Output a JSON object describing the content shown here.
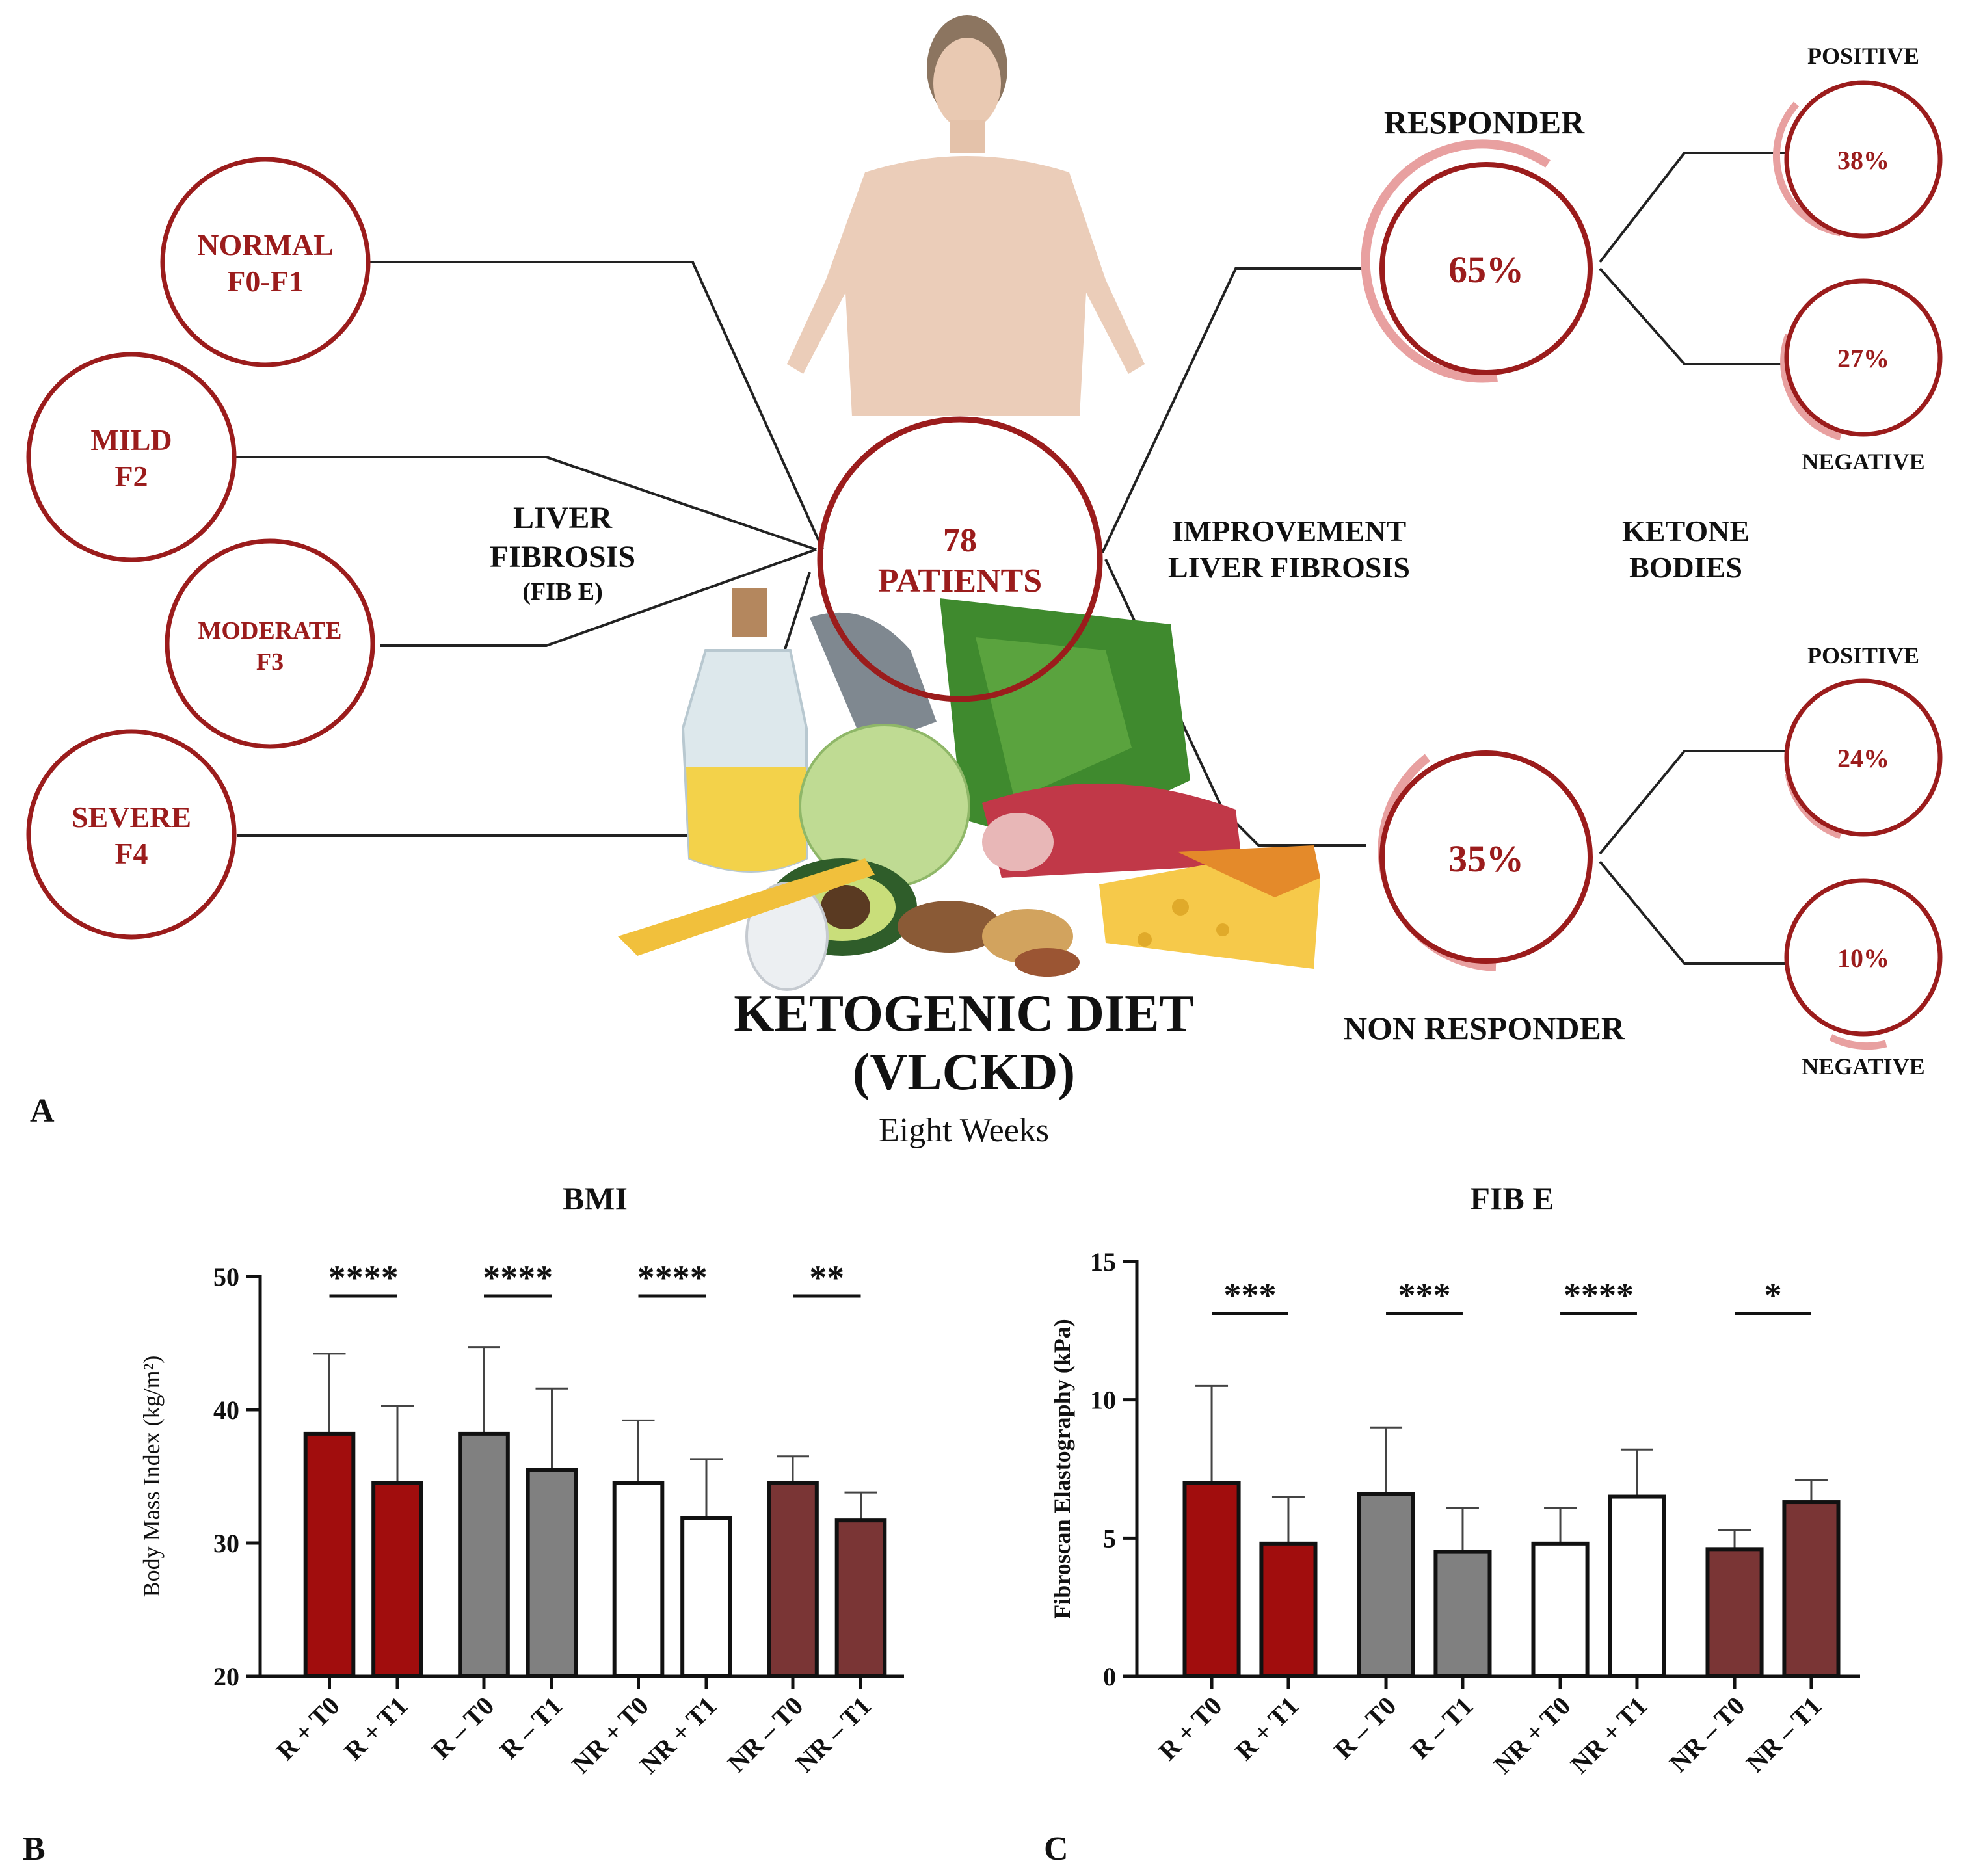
{
  "panel_a": {
    "label": "A",
    "fibrosis_stages": [
      {
        "name": "NORMAL",
        "grade": "F0-F1"
      },
      {
        "name": "MILD",
        "grade": "F2"
      },
      {
        "name": "MODERATE",
        "grade": "F3"
      },
      {
        "name": "SEVERE",
        "grade": "F4"
      }
    ],
    "liver_fibrosis": {
      "line1": "LIVER",
      "line2": "FIBROSIS",
      "line3": "(FIB E)"
    },
    "patients": {
      "count": "78",
      "label": "PATIENTS"
    },
    "diet": {
      "title": "KETOGENIC DIET",
      "abbr": "(VLCKD)",
      "duration": "Eight Weeks"
    },
    "improvement": {
      "line1": "IMPROVEMENT",
      "line2": "LIVER FIBROSIS"
    },
    "ketone": {
      "line1": "KETONE",
      "line2": "BODIES"
    },
    "responder": {
      "label": "RESPONDER",
      "percent": "65%",
      "positive": "38%",
      "negative": "27%",
      "pos_label": "POSITIVE",
      "neg_label": "NEGATIVE"
    },
    "non_responder": {
      "label": "NON RESPONDER",
      "percent": "35%",
      "positive": "24%",
      "negative": "10%",
      "pos_label": "POSITIVE",
      "neg_label": "NEGATIVE"
    },
    "colors": {
      "accent": "#9b1c1c",
      "light": "#e8a0a0",
      "line": "#222222"
    }
  },
  "chart_data": [
    {
      "panel": "B",
      "type": "bar",
      "title": "BMI",
      "ylabel": "Body Mass Index (kg/m²)",
      "ylim": [
        20,
        50
      ],
      "yticks": [
        "20",
        "30",
        "40",
        "50"
      ],
      "categories": [
        "R + T0",
        "R + T1",
        "R – T0",
        "R – T1",
        "NR + T0",
        "NR + T1",
        "NR – T0",
        "NR – T1"
      ],
      "values": [
        38.2,
        34.5,
        38.2,
        35.5,
        34.5,
        31.9,
        34.5,
        31.7
      ],
      "errors": [
        6.0,
        5.8,
        6.5,
        6.1,
        4.7,
        4.4,
        2.0,
        2.1
      ],
      "colors": [
        "#a10d0d",
        "#a10d0d",
        "#808080",
        "#808080",
        "#ffffff",
        "#ffffff",
        "#7a3535",
        "#7a3535"
      ],
      "significance": [
        "****",
        "****",
        "****",
        "**"
      ]
    },
    {
      "panel": "C",
      "type": "bar",
      "title": "FIB E",
      "ylabel": "Fibroscan Elastography (kPa)",
      "ylim": [
        0,
        15
      ],
      "yticks": [
        "0",
        "5",
        "10",
        "15"
      ],
      "categories": [
        "R + T0",
        "R + T1",
        "R – T0",
        "R – T1",
        "NR + T0",
        "NR + T1",
        "NR – T0",
        "NR – T1"
      ],
      "values": [
        7.0,
        4.8,
        6.6,
        4.5,
        4.8,
        6.5,
        4.6,
        6.3
      ],
      "errors": [
        3.5,
        1.7,
        2.4,
        1.6,
        1.3,
        1.7,
        0.7,
        0.8
      ],
      "colors": [
        "#a10d0d",
        "#a10d0d",
        "#808080",
        "#808080",
        "#ffffff",
        "#ffffff",
        "#7a3535",
        "#7a3535"
      ],
      "significance": [
        "***",
        "***",
        "****",
        "*"
      ]
    }
  ]
}
